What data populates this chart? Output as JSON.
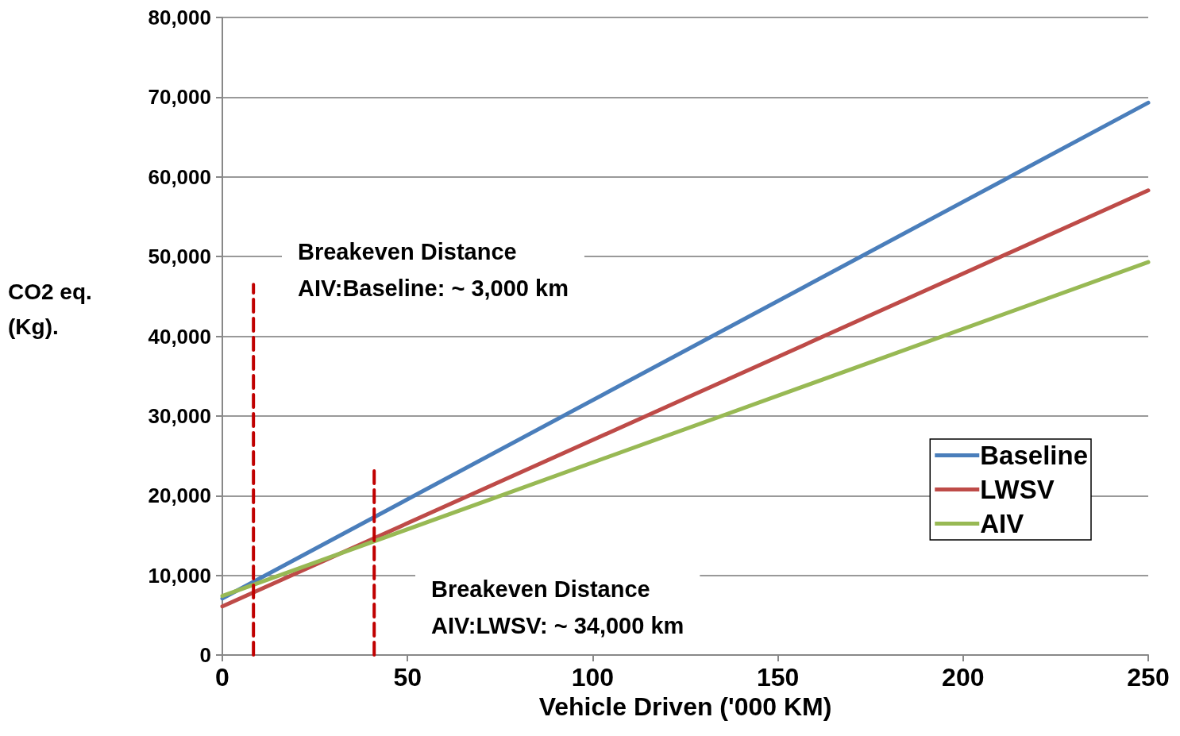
{
  "chart_data": {
    "type": "line",
    "xlabel": "Vehicle Driven ('000 KM)",
    "ylabel": "CO2 eq. (Kg).",
    "xlim": [
      0,
      250
    ],
    "xticks": [
      0,
      50,
      100,
      150,
      200,
      250
    ],
    "ylim": [
      0,
      80000
    ],
    "yticks": [
      {
        "value": 0,
        "label": "0"
      },
      {
        "value": 10000,
        "label": "10,000"
      },
      {
        "value": 20000,
        "label": "20,000"
      },
      {
        "value": 30000,
        "label": "30,000"
      },
      {
        "value": 40000,
        "label": "40,000"
      },
      {
        "value": 50000,
        "label": "50,000"
      },
      {
        "value": 60000,
        "label": "60,000"
      },
      {
        "value": 70000,
        "label": "70,000"
      },
      {
        "value": 80000,
        "label": "80,000"
      }
    ],
    "grid": "y",
    "legend": "bottom right",
    "marker": "none",
    "series": [
      {
        "name": "Baseline",
        "color": "#4a7ebb",
        "x": [
          0,
          250
        ],
        "values": [
          7100,
          69300
        ]
      },
      {
        "name": "LWSV",
        "color": "#be4b48",
        "x": [
          0,
          250
        ],
        "values": [
          6100,
          58300
        ]
      },
      {
        "name": "AIV",
        "color": "#98b954",
        "x": [
          0,
          250
        ],
        "values": [
          7400,
          49300
        ]
      },
      {
        "type": "line",
        "color": "#c00000",
        "line_style": "dashed",
        "x": [
          8.4,
          8.4
        ],
        "values": [
          0,
          46500
        ]
      },
      {
        "type": "line",
        "color": "#c00000",
        "line_style": "dashed",
        "x": [
          41,
          41
        ],
        "values": [
          0,
          23900
        ]
      }
    ],
    "annotations": [
      "Breakeven Distance\nAIV:Baseline: ~ 3,000 km",
      "Breakeven Distance\nAIV:LWSV: ~ 34,000 km"
    ]
  }
}
